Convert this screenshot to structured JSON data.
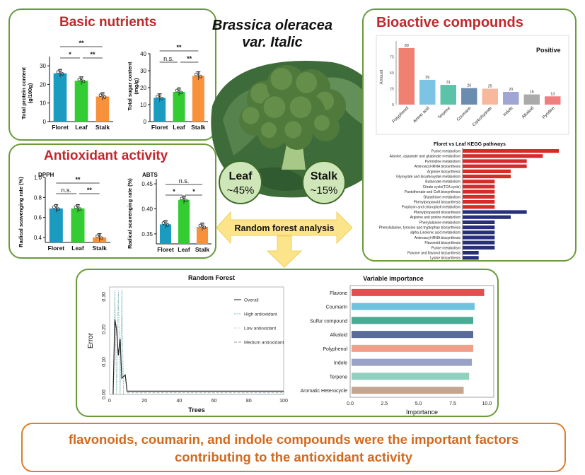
{
  "center": {
    "title_line1": "Brassica oleracea",
    "title_line2": "var. Italic",
    "leaf_label": "Leaf",
    "leaf_value": "~45%",
    "stalk_label": "Stalk",
    "stalk_value": "~15%",
    "arrow_label": "Random forest analysis"
  },
  "basic": {
    "title": "Basic nutrients",
    "protein": {
      "ylabel_line1": "Total protein content",
      "ylabel_line2": "(g/100g)",
      "yticks": [
        "0",
        "10",
        "20",
        "30"
      ],
      "categories": [
        "Floret",
        "Leaf",
        "Stalk"
      ],
      "values": [
        26,
        22,
        13.5
      ],
      "sig": [
        "**",
        "*",
        "**"
      ]
    },
    "sugar": {
      "ylabel_line1": "Total sugar content",
      "ylabel_line2": "(mg/g)",
      "yticks": [
        "0",
        "10",
        "20",
        "30",
        "40"
      ],
      "categories": [
        "Floret",
        "Leaf",
        "Stalk"
      ],
      "values": [
        14,
        17.5,
        27
      ],
      "sig": [
        "**",
        "n.s.",
        "**"
      ]
    }
  },
  "antioxidant": {
    "title": "Antioxidant activity",
    "dpph": {
      "label": "DPPH",
      "ylabel": "Radical scavenging rate (%)",
      "yticks": [
        "0.4",
        "0.6",
        "0.8",
        "1.0"
      ],
      "categories": [
        "Floret",
        "Leaf",
        "Stalk"
      ],
      "values": [
        0.69,
        0.69,
        0.4
      ],
      "sig": [
        "**",
        "n.s.",
        "**"
      ]
    },
    "abts": {
      "label": "ABTS",
      "ylabel": "Radical scavenging rate (%)",
      "yticks": [
        "0.35",
        "0.40",
        "0.45"
      ],
      "categories": [
        "Floret",
        "Leaf",
        "Stalk"
      ],
      "values": [
        0.369,
        0.418,
        0.364
      ],
      "sig": [
        "n.s.",
        "*",
        "*"
      ]
    }
  },
  "bioactive": {
    "title": "Bioactive compounds",
    "positive_label": "Positive",
    "ylabel": "Amount",
    "yticks": [
      "0",
      "25",
      "50",
      "75"
    ],
    "categories": [
      "Polyphenol",
      "Amino acid",
      "Terpene",
      "Coumarin",
      "Carbohydrate",
      "Indole",
      "Alkaloid",
      "Pyridine"
    ],
    "values": [
      89,
      39,
      31,
      26,
      25,
      20,
      16,
      13
    ],
    "colors": [
      "#f08070",
      "#7dc4e4",
      "#5cc2a8",
      "#6a8caf",
      "#f7b89c",
      "#9fa6d4",
      "#aaaaaa",
      "#f08080"
    ],
    "kegg": {
      "title": "Floret vs Leaf KEGG pathways",
      "xticks": [
        "0",
        "1",
        "2",
        "3",
        "4",
        "5",
        "6"
      ],
      "red_pathways": [
        {
          "name": "Purine metabolism",
          "value": 6
        },
        {
          "name": "Alanine, aspartate and glutamate metabolism",
          "value": 5
        },
        {
          "name": "Pyrimidine metabolism",
          "value": 4
        },
        {
          "name": "Aminoacyl-tRNA biosynthesis",
          "value": 4
        },
        {
          "name": "Arginine biosynthesis",
          "value": 3
        },
        {
          "name": "Glyoxylate and dicarboxylate metabolism",
          "value": 3
        },
        {
          "name": "Butanoate metabolism",
          "value": 2
        },
        {
          "name": "Citrate cycle(TCA cycle)",
          "value": 2
        },
        {
          "name": "Pantothenate and CoA biosynthesis",
          "value": 2
        },
        {
          "name": "Glutathione metabolism",
          "value": 2
        },
        {
          "name": "Phenylpropanoid biosynthesis",
          "value": 2
        },
        {
          "name": "Porphyrin and chlorophyll metabolism",
          "value": 2
        }
      ],
      "blue_pathways": [
        {
          "name": "Phenylpropanoid biosynthesis",
          "value": 4
        },
        {
          "name": "Arginine and proline metabolism",
          "value": 3
        },
        {
          "name": "Phenylalanine metabolism",
          "value": 2
        },
        {
          "name": "Phenylalanine, tyrosine and tryptophan biosynthesis",
          "value": 2
        },
        {
          "name": "alpha-Linolenic acid metabolism",
          "value": 2
        },
        {
          "name": "Aminoacyl-tRNA biosynthesis",
          "value": 2
        },
        {
          "name": "Flavonoid biosynthesis",
          "value": 2
        },
        {
          "name": "Purine metabolism",
          "value": 2
        },
        {
          "name": "Flavone and flavonol biosynthesis",
          "value": 1
        },
        {
          "name": "Lysine biosynthesis",
          "value": 1
        }
      ]
    }
  },
  "random_forest": {
    "title": "Random Forest",
    "xlabel": "Trees",
    "ylabel": "Error",
    "xticks": [
      "0",
      "20",
      "40",
      "60",
      "80",
      "100"
    ],
    "yticks": [
      "0.00",
      "0.10",
      "0.20",
      "0.30"
    ],
    "legend": [
      "Overall",
      "High antioxidant",
      "Low antioxidant",
      "Medium antioxidant"
    ]
  },
  "importance": {
    "title": "Variable importance",
    "xlabel": "Importance",
    "xticks": [
      "0.0",
      "2.5",
      "5.0",
      "7.5",
      "10.0"
    ],
    "variables": [
      "Flavone",
      "Coumarin",
      "Sulfur compound",
      "Alkaloid",
      "Polyphenol",
      "Indole",
      "Terpene",
      "Aromatic Heterocycle"
    ],
    "values": [
      9.8,
      9.1,
      9.0,
      9.0,
      9.0,
      8.9,
      8.7,
      8.3
    ],
    "colors": [
      "#e05050",
      "#6fc3df",
      "#4aaa94",
      "#5a6b9a",
      "#f0a08a",
      "#9aa2c8",
      "#8fd0bf",
      "#c4a690"
    ]
  },
  "chart_data": [
    {
      "type": "bar",
      "ylabel": "Total protein content (g/100g)",
      "categories": [
        "Floret",
        "Leaf",
        "Stalk"
      ],
      "values": [
        26,
        22,
        13.5
      ],
      "ylim": [
        0,
        35
      ]
    },
    {
      "type": "bar",
      "ylabel": "Total sugar content (mg/g)",
      "categories": [
        "Floret",
        "Leaf",
        "Stalk"
      ],
      "values": [
        14,
        17.5,
        27
      ],
      "ylim": [
        0,
        40
      ]
    },
    {
      "type": "bar",
      "title": "DPPH",
      "ylabel": "Radical scavenging rate (%)",
      "categories": [
        "Floret",
        "Leaf",
        "Stalk"
      ],
      "values": [
        0.69,
        0.69,
        0.4
      ],
      "ylim": [
        0.35,
        1.0
      ]
    },
    {
      "type": "bar",
      "title": "ABTS",
      "ylabel": "Radical scavenging rate (%)",
      "categories": [
        "Floret",
        "Leaf",
        "Stalk"
      ],
      "values": [
        0.369,
        0.418,
        0.364
      ],
      "ylim": [
        0.33,
        0.46
      ]
    },
    {
      "type": "bar",
      "title": "Positive",
      "ylabel": "Amount",
      "categories": [
        "Polyphenol",
        "Amino acid",
        "Terpene",
        "Coumarin",
        "Carbohydrate",
        "Indole",
        "Alkaloid",
        "Pyridine"
      ],
      "values": [
        89,
        39,
        31,
        26,
        25,
        20,
        16,
        13
      ],
      "ylim": [
        0,
        100
      ]
    },
    {
      "type": "bar",
      "title": "Floret vs Leaf KEGG pathways",
      "xlim": [
        0,
        6
      ]
    },
    {
      "type": "line",
      "title": "Random Forest",
      "xlabel": "Trees",
      "ylabel": "Error",
      "xlim": [
        0,
        100
      ],
      "ylim": [
        0,
        0.33
      ]
    },
    {
      "type": "bar",
      "title": "Variable importance",
      "xlabel": "Importance",
      "categories": [
        "Flavone",
        "Coumarin",
        "Sulfur compound",
        "Alkaloid",
        "Polyphenol",
        "Indole",
        "Terpene",
        "Aromatic Heterocycle"
      ],
      "values": [
        9.8,
        9.1,
        9.0,
        9.0,
        9.0,
        8.9,
        8.7,
        8.3
      ],
      "xlim": [
        0,
        10.5
      ]
    }
  ],
  "conclusion": {
    "line1": "flavonoids, coumarin, and indole compounds were the important factors",
    "line2": "contributing to the antioxidant activity"
  }
}
